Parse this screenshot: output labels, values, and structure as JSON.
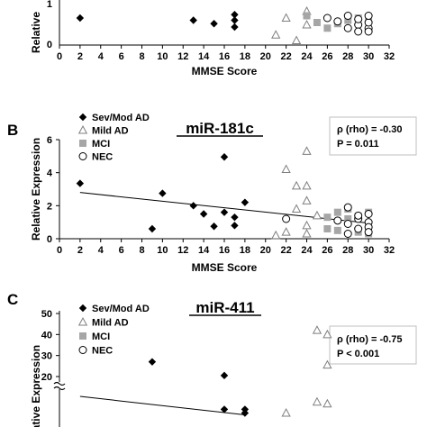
{
  "colors": {
    "sev_fill": "#000000",
    "mild_stroke": "#7f7f7f",
    "mci_fill": "#a6a6a6",
    "nec_stroke": "#000000",
    "trend": "#000000",
    "axis": "#000000",
    "stat_border": "#bfbfbf"
  },
  "chart_data": [
    {
      "type": "scatter",
      "panel_label": "",
      "title": "",
      "xlabel": "MMSE Score",
      "ylabel": "Relative",
      "xlim": [
        0,
        32
      ],
      "ylim": [
        0,
        2
      ],
      "xticks": [
        "0",
        "2",
        "4",
        "6",
        "8",
        "10",
        "12",
        "14",
        "16",
        "18",
        "20",
        "22",
        "24",
        "26",
        "28",
        "30",
        "32"
      ],
      "yticks": [
        "0",
        "1"
      ],
      "legend": [],
      "stats": [],
      "series": [
        {
          "name": "Sev/Mod AD",
          "marker": "diamond",
          "points": [
            [
              2,
              1.2
            ],
            [
              13,
              1.1
            ],
            [
              15,
              0.95
            ],
            [
              17,
              1.1
            ],
            [
              17,
              0.8
            ],
            [
              17,
              1.35
            ]
          ]
        },
        {
          "name": "Mild AD",
          "marker": "triangle",
          "points": [
            [
              21,
              0.45
            ],
            [
              22,
              1.2
            ],
            [
              23,
              0.2
            ],
            [
              24,
              1.5
            ],
            [
              24,
              0.9
            ]
          ]
        },
        {
          "name": "MCI",
          "marker": "square",
          "points": [
            [
              24,
              1.3
            ],
            [
              25,
              1.0
            ],
            [
              26,
              0.75
            ],
            [
              27,
              0.95
            ],
            [
              28,
              1.1
            ],
            [
              29,
              1.2
            ],
            [
              30,
              1.1
            ]
          ]
        },
        {
          "name": "NEC",
          "marker": "circle",
          "points": [
            [
              26,
              1.2
            ],
            [
              27,
              1.05
            ],
            [
              28,
              1.3
            ],
            [
              29,
              0.9
            ],
            [
              29,
              0.6
            ],
            [
              30,
              0.75
            ],
            [
              30,
              1.0
            ],
            [
              30,
              1.3
            ],
            [
              28,
              0.75
            ],
            [
              29,
              1.15
            ],
            [
              30,
              0.6
            ]
          ]
        }
      ],
      "trend": []
    },
    {
      "type": "scatter",
      "panel_label": "B",
      "title": "miR-181c",
      "xlabel": "MMSE Score",
      "ylabel": "Relative Expression",
      "xlim": [
        0,
        32
      ],
      "ylim": [
        0,
        6
      ],
      "xticks": [
        "0",
        "2",
        "4",
        "6",
        "8",
        "10",
        "12",
        "14",
        "16",
        "18",
        "20",
        "22",
        "24",
        "26",
        "28",
        "30",
        "32"
      ],
      "yticks": [
        "0",
        "2",
        "4",
        "6"
      ],
      "legend": [
        "Sev/Mod AD",
        "Mild AD",
        "MCI",
        "NEC"
      ],
      "stats": [
        "ρ (rho) = -0.30",
        "P = 0.011"
      ],
      "series": [
        {
          "name": "Sev/Mod AD",
          "marker": "diamond",
          "points": [
            [
              2,
              3.35
            ],
            [
              9,
              0.6
            ],
            [
              10,
              2.75
            ],
            [
              13,
              2.0
            ],
            [
              14,
              1.5
            ],
            [
              15,
              0.75
            ],
            [
              16,
              4.95
            ],
            [
              16,
              1.6
            ],
            [
              17,
              1.3
            ],
            [
              17,
              0.8
            ],
            [
              18,
              2.2
            ]
          ]
        },
        {
          "name": "Mild AD",
          "marker": "triangle",
          "points": [
            [
              21,
              0.2
            ],
            [
              22,
              4.2
            ],
            [
              22,
              0.4
            ],
            [
              23,
              3.2
            ],
            [
              23,
              1.8
            ],
            [
              24,
              5.3
            ],
            [
              24,
              3.2
            ],
            [
              24,
              2.3
            ],
            [
              24,
              0.8
            ],
            [
              24,
              0.3
            ],
            [
              25,
              1.4
            ]
          ]
        },
        {
          "name": "MCI",
          "marker": "square",
          "points": [
            [
              26,
              1.3
            ],
            [
              27,
              1.6
            ],
            [
              27,
              0.5
            ],
            [
              28,
              1.8
            ],
            [
              28,
              1.2
            ],
            [
              29,
              0.4
            ],
            [
              30,
              1.6
            ],
            [
              30,
              0.3
            ],
            [
              26,
              0.6
            ],
            [
              29,
              1.35
            ]
          ]
        },
        {
          "name": "NEC",
          "marker": "circle",
          "points": [
            [
              22,
              1.2
            ],
            [
              27,
              1.1
            ],
            [
              28,
              1.9
            ],
            [
              28,
              0.9
            ],
            [
              29,
              1.2
            ],
            [
              29,
              0.6
            ],
            [
              30,
              1.5
            ],
            [
              30,
              1.0
            ],
            [
              30,
              0.7
            ],
            [
              30,
              0.4
            ],
            [
              29,
              1.4
            ],
            [
              28,
              0.3
            ]
          ]
        }
      ],
      "trend": [
        [
          2,
          2.8
        ],
        [
          30,
          0.95
        ]
      ]
    },
    {
      "type": "scatter",
      "panel_label": "C",
      "title": "miR-411",
      "xlabel": "",
      "ylabel": "Relative Expression",
      "xlim": [
        0,
        32
      ],
      "ylim": [
        0,
        50
      ],
      "xticks": [],
      "yticks": [
        "20",
        "30",
        "40",
        "50"
      ],
      "legend": [
        "Sev/Mod AD",
        "Mild AD",
        "MCI",
        "NEC"
      ],
      "stats": [
        "ρ (rho) = -0.75",
        "P < 0.001"
      ],
      "series": [
        {
          "name": "Sev/Mod AD",
          "marker": "diamond",
          "points": [
            [
              9,
              27
            ],
            [
              16,
              20.5
            ],
            [
              16,
              16
            ],
            [
              18,
              16
            ],
            [
              18,
              15
            ]
          ]
        },
        {
          "name": "Mild AD",
          "marker": "triangle",
          "points": [
            [
              22,
              15
            ],
            [
              25,
              42
            ],
            [
              26,
              40
            ],
            [
              26,
              25.5
            ],
            [
              25,
              18
            ],
            [
              26,
              17.5
            ]
          ]
        },
        {
          "name": "MCI",
          "marker": "square",
          "points": []
        },
        {
          "name": "NEC",
          "marker": "circle",
          "points": []
        }
      ],
      "trend": [
        [
          2,
          19.5
        ],
        [
          18,
          14.5
        ]
      ]
    }
  ]
}
